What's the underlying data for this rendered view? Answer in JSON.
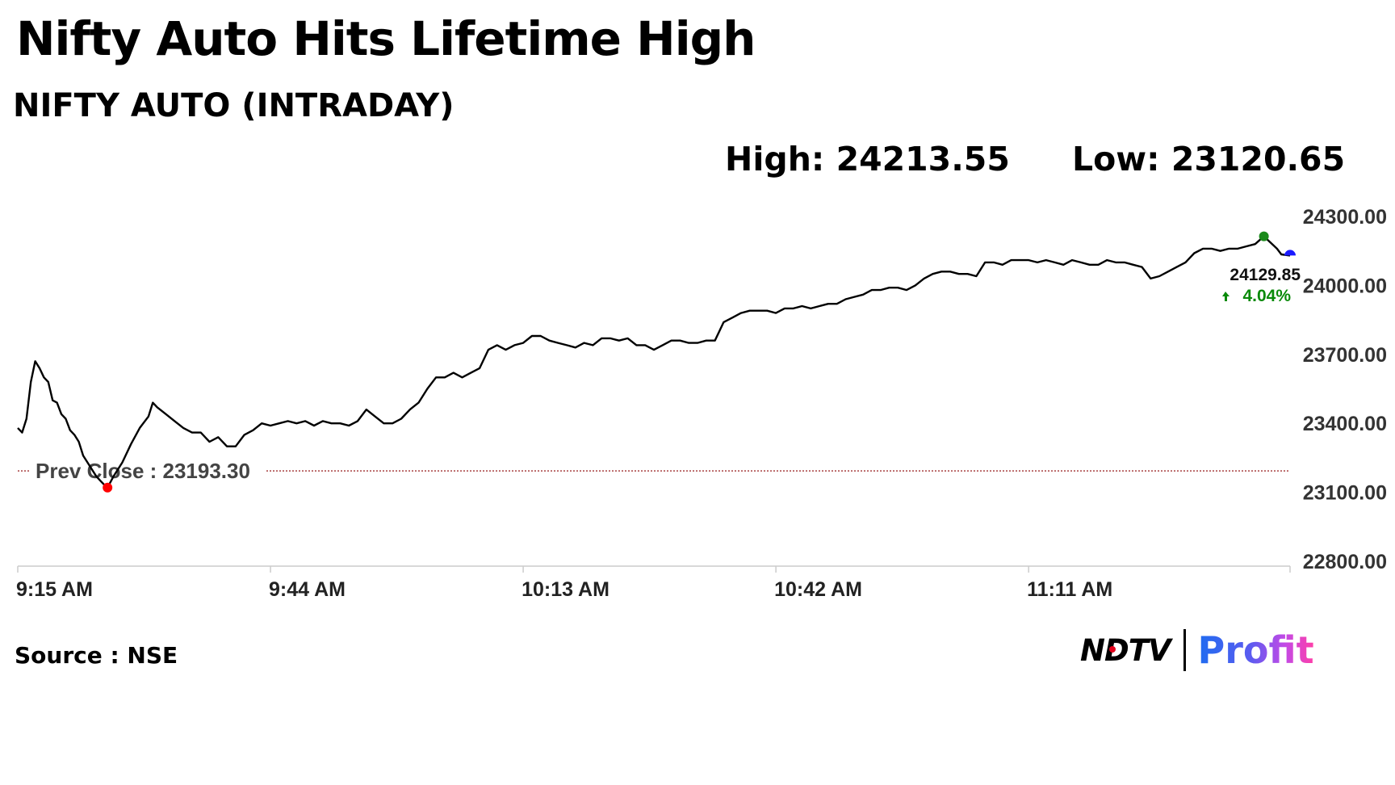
{
  "header": {
    "title": "Nifty Auto Hits Lifetime High",
    "subtitle": "NIFTY AUTO (INTRADAY)",
    "high_text": "High: 24213.55",
    "low_text": "Low: 23120.65"
  },
  "footer": {
    "source": "Source : NSE",
    "logo_ndtv": "NDTV",
    "logo_profit": "Profit"
  },
  "colors": {
    "line": "#000000",
    "prev_close": "#8b0000",
    "prev_close_marker": "#ff0000",
    "high_marker": "#1a8a1a",
    "last_marker": "#1a1aff",
    "change_up": "#0a8a0a",
    "axis": "#cccccc",
    "logo_profit_start": "#1e6cf0",
    "logo_profit_end": "#ff3fa8"
  },
  "chart_data": {
    "type": "line",
    "title": "NIFTY AUTO (INTRADAY)",
    "xlabel": "",
    "ylabel": "",
    "x_ticks": [
      "9:15 AM",
      "9:44 AM",
      "10:13 AM",
      "10:42 AM",
      "11:11 AM"
    ],
    "y_ticks": [
      "22800.00",
      "23100.00",
      "23400.00",
      "23700.00",
      "24000.00",
      "24300.00"
    ],
    "ylim": [
      22800,
      24300
    ],
    "x_range_minutes": [
      0,
      146
    ],
    "grid": false,
    "series": [
      {
        "name": "NIFTY AUTO",
        "points": [
          [
            0,
            23380
          ],
          [
            0.5,
            23360
          ],
          [
            1,
            23420
          ],
          [
            1.5,
            23580
          ],
          [
            2,
            23670
          ],
          [
            2.5,
            23640
          ],
          [
            3,
            23600
          ],
          [
            3.5,
            23580
          ],
          [
            4,
            23500
          ],
          [
            4.5,
            23490
          ],
          [
            5,
            23440
          ],
          [
            5.5,
            23420
          ],
          [
            6,
            23370
          ],
          [
            6.5,
            23350
          ],
          [
            7,
            23320
          ],
          [
            7.5,
            23260
          ],
          [
            8,
            23230
          ],
          [
            8.5,
            23200
          ],
          [
            9,
            23170
          ],
          [
            9.5,
            23150
          ],
          [
            10,
            23130
          ],
          [
            10.3,
            23120.65
          ],
          [
            11,
            23170
          ],
          [
            12,
            23230
          ],
          [
            13,
            23310
          ],
          [
            14,
            23380
          ],
          [
            15,
            23430
          ],
          [
            15.5,
            23490
          ],
          [
            16,
            23470
          ],
          [
            17,
            23440
          ],
          [
            18,
            23410
          ],
          [
            19,
            23380
          ],
          [
            20,
            23360
          ],
          [
            21,
            23360
          ],
          [
            22,
            23320
          ],
          [
            23,
            23340
          ],
          [
            24,
            23300
          ],
          [
            25,
            23300
          ],
          [
            26,
            23350
          ],
          [
            27,
            23370
          ],
          [
            28,
            23400
          ],
          [
            29,
            23390
          ],
          [
            30,
            23400
          ],
          [
            31,
            23410
          ],
          [
            32,
            23400
          ],
          [
            33,
            23410
          ],
          [
            34,
            23390
          ],
          [
            35,
            23410
          ],
          [
            36,
            23400
          ],
          [
            37,
            23400
          ],
          [
            38,
            23390
          ],
          [
            39,
            23410
          ],
          [
            40,
            23460
          ],
          [
            41,
            23430
          ],
          [
            42,
            23400
          ],
          [
            43,
            23400
          ],
          [
            44,
            23420
          ],
          [
            45,
            23460
          ],
          [
            46,
            23490
          ],
          [
            47,
            23550
          ],
          [
            48,
            23600
          ],
          [
            49,
            23600
          ],
          [
            50,
            23620
          ],
          [
            51,
            23600
          ],
          [
            52,
            23620
          ],
          [
            53,
            23640
          ],
          [
            54,
            23720
          ],
          [
            55,
            23740
          ],
          [
            56,
            23720
          ],
          [
            57,
            23740
          ],
          [
            58,
            23750
          ],
          [
            59,
            23780
          ],
          [
            60,
            23780
          ],
          [
            61,
            23760
          ],
          [
            62,
            23750
          ],
          [
            63,
            23740
          ],
          [
            64,
            23730
          ],
          [
            65,
            23750
          ],
          [
            66,
            23740
          ],
          [
            67,
            23770
          ],
          [
            68,
            23770
          ],
          [
            69,
            23760
          ],
          [
            70,
            23770
          ],
          [
            71,
            23740
          ],
          [
            72,
            23740
          ],
          [
            73,
            23720
          ],
          [
            74,
            23740
          ],
          [
            75,
            23760
          ],
          [
            76,
            23760
          ],
          [
            77,
            23750
          ],
          [
            78,
            23750
          ],
          [
            79,
            23760
          ],
          [
            80,
            23760
          ],
          [
            81,
            23840
          ],
          [
            82,
            23860
          ],
          [
            83,
            23880
          ],
          [
            84,
            23890
          ],
          [
            85,
            23890
          ],
          [
            86,
            23890
          ],
          [
            87,
            23880
          ],
          [
            88,
            23900
          ],
          [
            89,
            23900
          ],
          [
            90,
            23910
          ],
          [
            91,
            23900
          ],
          [
            92,
            23910
          ],
          [
            93,
            23920
          ],
          [
            94,
            23920
          ],
          [
            95,
            23940
          ],
          [
            96,
            23950
          ],
          [
            97,
            23960
          ],
          [
            98,
            23980
          ],
          [
            99,
            23980
          ],
          [
            100,
            23990
          ],
          [
            101,
            23990
          ],
          [
            102,
            23980
          ],
          [
            103,
            24000
          ],
          [
            104,
            24030
          ],
          [
            105,
            24050
          ],
          [
            106,
            24060
          ],
          [
            107,
            24060
          ],
          [
            108,
            24050
          ],
          [
            109,
            24050
          ],
          [
            110,
            24040
          ],
          [
            111,
            24100
          ],
          [
            112,
            24100
          ],
          [
            113,
            24090
          ],
          [
            114,
            24110
          ],
          [
            115,
            24110
          ],
          [
            116,
            24110
          ],
          [
            117,
            24100
          ],
          [
            118,
            24110
          ],
          [
            119,
            24100
          ],
          [
            120,
            24090
          ],
          [
            121,
            24110
          ],
          [
            122,
            24100
          ],
          [
            123,
            24090
          ],
          [
            124,
            24090
          ],
          [
            125,
            24110
          ],
          [
            126,
            24100
          ],
          [
            127,
            24100
          ],
          [
            128,
            24090
          ],
          [
            129,
            24080
          ],
          [
            130,
            24030
          ],
          [
            131,
            24040
          ],
          [
            132,
            24060
          ],
          [
            133,
            24080
          ],
          [
            134,
            24100
          ],
          [
            135,
            24140
          ],
          [
            136,
            24160
          ],
          [
            137,
            24160
          ],
          [
            138,
            24150
          ],
          [
            139,
            24160
          ],
          [
            140,
            24160
          ],
          [
            141,
            24170
          ],
          [
            142,
            24180
          ],
          [
            143,
            24213.55
          ],
          [
            144.5,
            24160
          ],
          [
            145,
            24135
          ],
          [
            146,
            24129.85
          ]
        ]
      }
    ],
    "prev_close": 23193.3,
    "prev_close_label": "Prev Close : 23193.30",
    "low_point": [
      10.3,
      23120.65
    ],
    "high_point": [
      143,
      24213.55
    ],
    "last_point": [
      146,
      24129.85
    ],
    "last_value_label": "24129.85",
    "change_label": "4.04%",
    "change_direction": "up"
  }
}
